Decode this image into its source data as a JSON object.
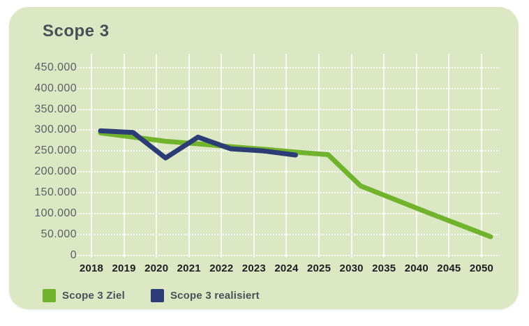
{
  "card": {
    "title": "Scope 3"
  },
  "colors": {
    "card_background": "#dce8c3",
    "page_background": "#ffffff",
    "title_text": "#4a4f55",
    "y_tick_text": "#5b5f64",
    "x_tick_text": "#1d1e21",
    "gridline": "#ffffff",
    "ziel_green": "#71b32d",
    "realisiert_navy": "#2b3d74"
  },
  "chart_data": {
    "type": "line",
    "title": "Scope 3",
    "categories": [
      "2018",
      "2019",
      "2020",
      "2021",
      "2022",
      "2023",
      "2024",
      "2025",
      "2030",
      "2035",
      "2040",
      "2045",
      "2050"
    ],
    "series": [
      {
        "name": "Scope 3 Ziel",
        "color": "#71b32d",
        "values": [
          310000,
          300000,
          290000,
          284000,
          277000,
          271000,
          264000,
          258000,
          183000,
          152000,
          121000,
          91000,
          61000
        ]
      },
      {
        "name": "Scope 3 realisiert",
        "color": "#2b3d74",
        "values": [
          315000,
          311000,
          250000,
          300000,
          272000,
          267000,
          257000
        ]
      }
    ],
    "xlabel": "",
    "ylabel": "",
    "ylim": [
      0,
      450000
    ],
    "y_ticks": [
      0,
      50000,
      100000,
      150000,
      200000,
      250000,
      300000,
      350000,
      400000,
      450000
    ],
    "y_tick_labels": [
      "0",
      "50.000",
      "100.000",
      "150.000",
      "200.000",
      "250.000",
      "300.000",
      "350.000",
      "400.000",
      "450.000"
    ],
    "grid": "vertical solid white, horizontal dotted white",
    "legend_position": "bottom-left"
  },
  "legend": {
    "items": [
      {
        "label": "Scope 3 Ziel",
        "color": "#71b32d"
      },
      {
        "label": "Scope 3 realisiert",
        "color": "#2b3d74"
      }
    ]
  }
}
